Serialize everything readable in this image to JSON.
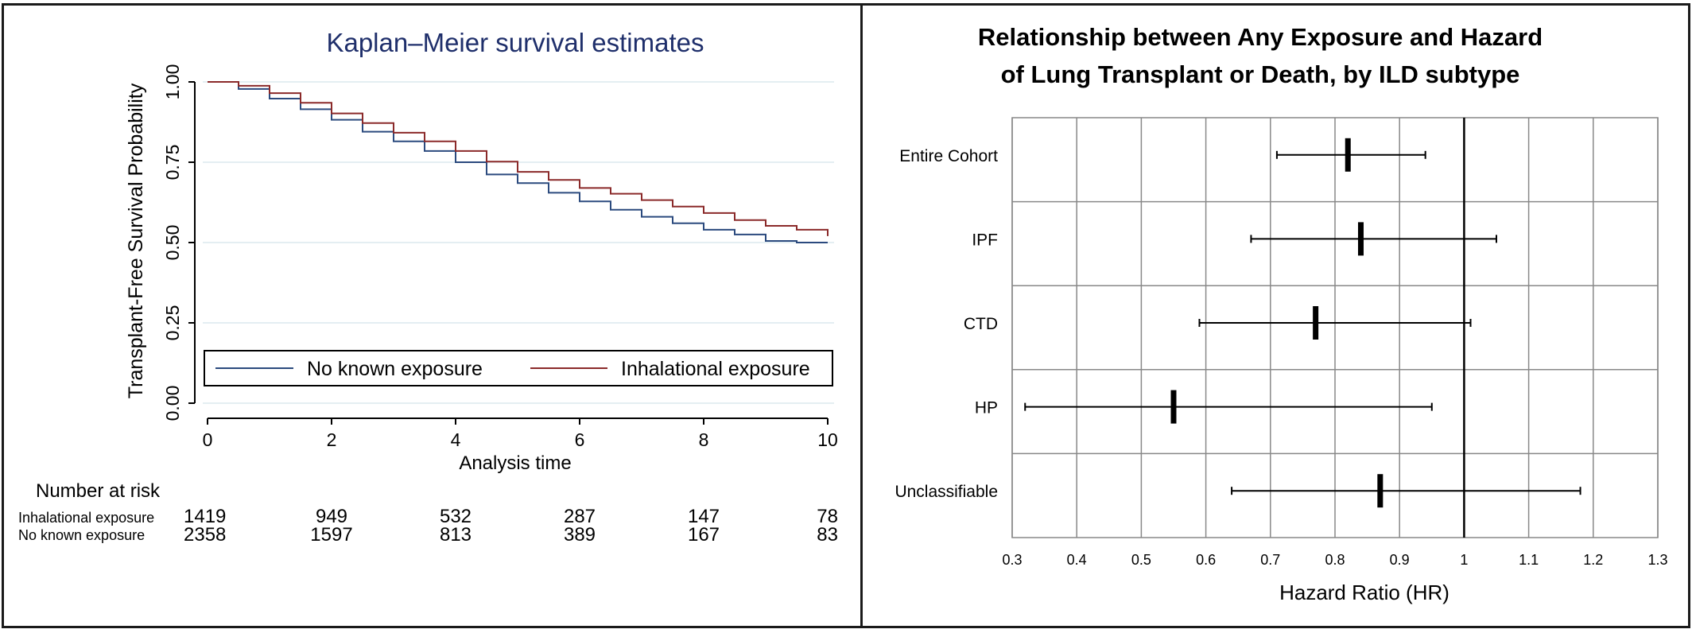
{
  "chart_data": [
    {
      "type": "line",
      "title": "Kaplan–Meier survival estimates",
      "xlabel": "Analysis time",
      "ylabel": "Transplant-Free Survival Probability",
      "xlim": [
        0,
        10
      ],
      "ylim": [
        0,
        1
      ],
      "x_ticks": [
        "0",
        "2",
        "4",
        "6",
        "8",
        "10"
      ],
      "y_ticks": [
        "0.00",
        "0.25",
        "0.50",
        "0.75",
        "1.00"
      ],
      "grid": "horizontal",
      "legend_position": "bottom",
      "series": [
        {
          "name": "No known exposure",
          "color": "#2b4a7e",
          "points": [
            [
              0,
              1.0
            ],
            [
              0.5,
              0.978
            ],
            [
              1,
              0.948
            ],
            [
              1.5,
              0.915
            ],
            [
              2,
              0.882
            ],
            [
              2.5,
              0.845
            ],
            [
              3,
              0.815
            ],
            [
              3.5,
              0.785
            ],
            [
              4,
              0.75
            ],
            [
              4.5,
              0.712
            ],
            [
              5,
              0.685
            ],
            [
              5.5,
              0.655
            ],
            [
              6,
              0.628
            ],
            [
              6.5,
              0.602
            ],
            [
              7,
              0.58
            ],
            [
              7.5,
              0.56
            ],
            [
              8,
              0.54
            ],
            [
              8.5,
              0.525
            ],
            [
              9,
              0.505
            ],
            [
              9.5,
              0.5
            ],
            [
              10,
              0.5
            ]
          ]
        },
        {
          "name": "Inhalational exposure",
          "color": "#8b2a2a",
          "points": [
            [
              0,
              1.0
            ],
            [
              0.5,
              0.988
            ],
            [
              1,
              0.965
            ],
            [
              1.5,
              0.935
            ],
            [
              2,
              0.902
            ],
            [
              2.5,
              0.872
            ],
            [
              3,
              0.842
            ],
            [
              3.5,
              0.815
            ],
            [
              4,
              0.785
            ],
            [
              4.5,
              0.752
            ],
            [
              5,
              0.72
            ],
            [
              5.5,
              0.695
            ],
            [
              6,
              0.67
            ],
            [
              6.5,
              0.652
            ],
            [
              7,
              0.632
            ],
            [
              7.5,
              0.612
            ],
            [
              8,
              0.592
            ],
            [
              8.5,
              0.57
            ],
            [
              9,
              0.552
            ],
            [
              9.5,
              0.54
            ],
            [
              10,
              0.52
            ]
          ]
        }
      ],
      "risk_table": {
        "heading": "Number at risk",
        "rows": [
          {
            "label": "Inhalational exposure",
            "values": [
              "1419",
              "949",
              "532",
              "287",
              "147",
              "78"
            ]
          },
          {
            "label": "No known exposure",
            "values": [
              "2358",
              "1597",
              "813",
              "389",
              "167",
              "83"
            ]
          }
        ]
      }
    },
    {
      "type": "forest",
      "title_lines": [
        "Relationship between Any Exposure and Hazard",
        "of Lung Transplant or Death, by ILD subtype"
      ],
      "xlabel": "Hazard Ratio (HR)",
      "xlim": [
        0.3,
        1.3
      ],
      "x_ticks": [
        "0.3",
        "0.4",
        "0.5",
        "0.6",
        "0.7",
        "0.8",
        "0.9",
        "1",
        "1.1",
        "1.2",
        "1.3"
      ],
      "reference_line": 1,
      "rows": [
        {
          "label": "Entire Cohort",
          "hr": 0.82,
          "lower": 0.71,
          "upper": 0.94
        },
        {
          "label": "IPF",
          "hr": 0.84,
          "lower": 0.67,
          "upper": 1.05
        },
        {
          "label": "CTD",
          "hr": 0.77,
          "lower": 0.59,
          "upper": 1.01
        },
        {
          "label": "HP",
          "hr": 0.55,
          "lower": 0.32,
          "upper": 0.95
        },
        {
          "label": "Unclassifiable",
          "hr": 0.87,
          "lower": 0.64,
          "upper": 1.18
        }
      ]
    }
  ]
}
